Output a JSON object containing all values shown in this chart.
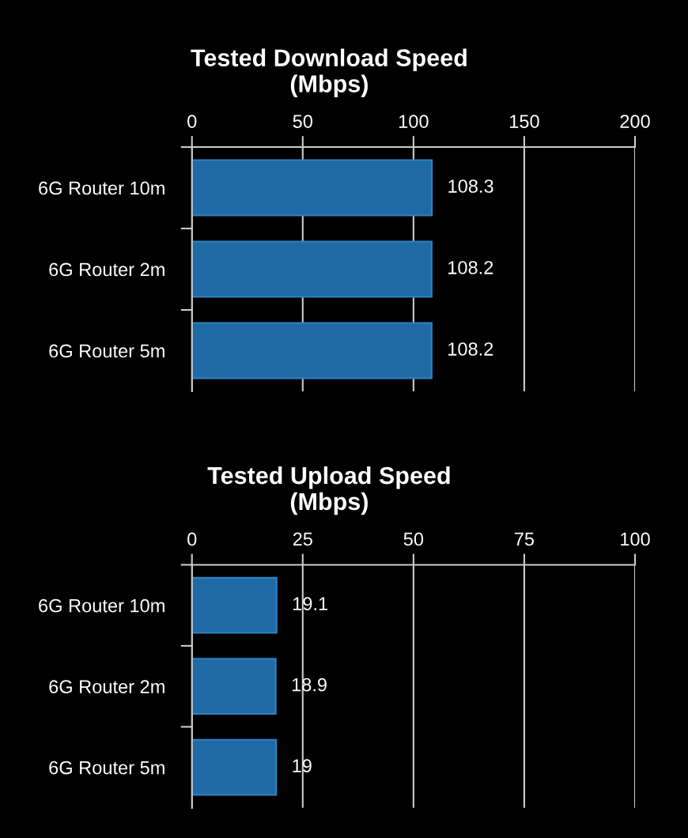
{
  "chart_data": [
    {
      "type": "bar",
      "orientation": "horizontal",
      "title": "Tested Download Speed\n(Mbps)",
      "categories": [
        "6G Router 10m",
        "6G Router 2m",
        "6G Router 5m"
      ],
      "values": [
        108.3,
        108.2,
        108.2
      ],
      "color": "#1f6aa5",
      "xlim": [
        0,
        200
      ],
      "xticks": [
        0,
        50,
        100,
        150,
        200
      ],
      "grid": "x",
      "data_labels": true
    },
    {
      "type": "bar",
      "orientation": "horizontal",
      "title": "Tested Upload Speed\n(Mbps)",
      "categories": [
        "6G Router 10m",
        "6G Router 2m",
        "6G Router 5m"
      ],
      "values": [
        19.1,
        18.9,
        19
      ],
      "color": "#1f6aa5",
      "xlim": [
        0,
        100
      ],
      "xticks": [
        0,
        25,
        50,
        75,
        100
      ],
      "grid": "x",
      "data_labels": true
    }
  ]
}
